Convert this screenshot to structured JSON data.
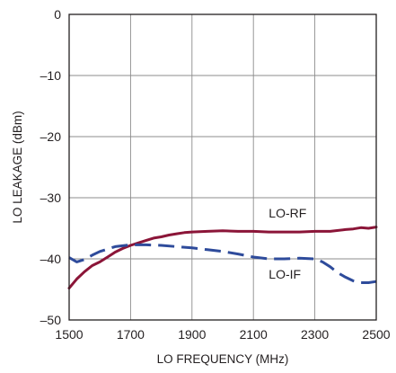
{
  "chart_data": {
    "type": "line",
    "title": "",
    "xlabel": "LO FREQUENCY (MHz)",
    "ylabel": "LO LEAKAGE (dBm)",
    "xlim": [
      1500,
      2500
    ],
    "ylim": [
      -50,
      0
    ],
    "x_ticks": [
      1500,
      1700,
      1900,
      2100,
      2300,
      2500
    ],
    "x_tick_labels": [
      "1500",
      "1700",
      "1900",
      "2100",
      "2300",
      "2500"
    ],
    "y_ticks": [
      0,
      -10,
      -20,
      -30,
      -40,
      -50
    ],
    "y_tick_labels": [
      "0",
      "–10",
      "–20",
      "–30",
      "–40",
      "–50"
    ],
    "grid": true,
    "legend": "none",
    "series": [
      {
        "name": "LO-RF",
        "color": "#8b1538",
        "style": "solid",
        "label_at": [
          2150,
          -32.5
        ],
        "x": [
          1500,
          1525,
          1550,
          1575,
          1600,
          1625,
          1650,
          1675,
          1700,
          1725,
          1750,
          1775,
          1800,
          1825,
          1850,
          1875,
          1900,
          1950,
          2000,
          2050,
          2100,
          2150,
          2200,
          2250,
          2300,
          2350,
          2400,
          2425,
          2450,
          2475,
          2500
        ],
        "y": [
          -44.8,
          -43.3,
          -42.1,
          -41.1,
          -40.5,
          -39.7,
          -38.9,
          -38.3,
          -37.8,
          -37.4,
          -37.0,
          -36.6,
          -36.4,
          -36.1,
          -35.9,
          -35.7,
          -35.6,
          -35.5,
          -35.4,
          -35.5,
          -35.5,
          -35.6,
          -35.6,
          -35.6,
          -35.5,
          -35.5,
          -35.2,
          -35.1,
          -34.9,
          -35.0,
          -34.8
        ]
      },
      {
        "name": "LO-IF",
        "color": "#2e4b9b",
        "style": "dashed",
        "label_at": [
          2150,
          -42.5
        ],
        "x": [
          1500,
          1525,
          1550,
          1575,
          1600,
          1650,
          1700,
          1750,
          1800,
          1850,
          1900,
          1950,
          2000,
          2050,
          2100,
          2150,
          2200,
          2250,
          2300,
          2325,
          2350,
          2375,
          2400,
          2425,
          2450,
          2475,
          2500
        ],
        "y": [
          -39.8,
          -40.5,
          -40.1,
          -39.4,
          -38.8,
          -38.0,
          -37.7,
          -37.7,
          -37.8,
          -38.0,
          -38.2,
          -38.5,
          -38.8,
          -39.2,
          -39.7,
          -40.0,
          -40.0,
          -39.9,
          -40.0,
          -40.5,
          -41.3,
          -42.3,
          -43.0,
          -43.6,
          -43.9,
          -43.9,
          -43.7
        ]
      }
    ]
  }
}
